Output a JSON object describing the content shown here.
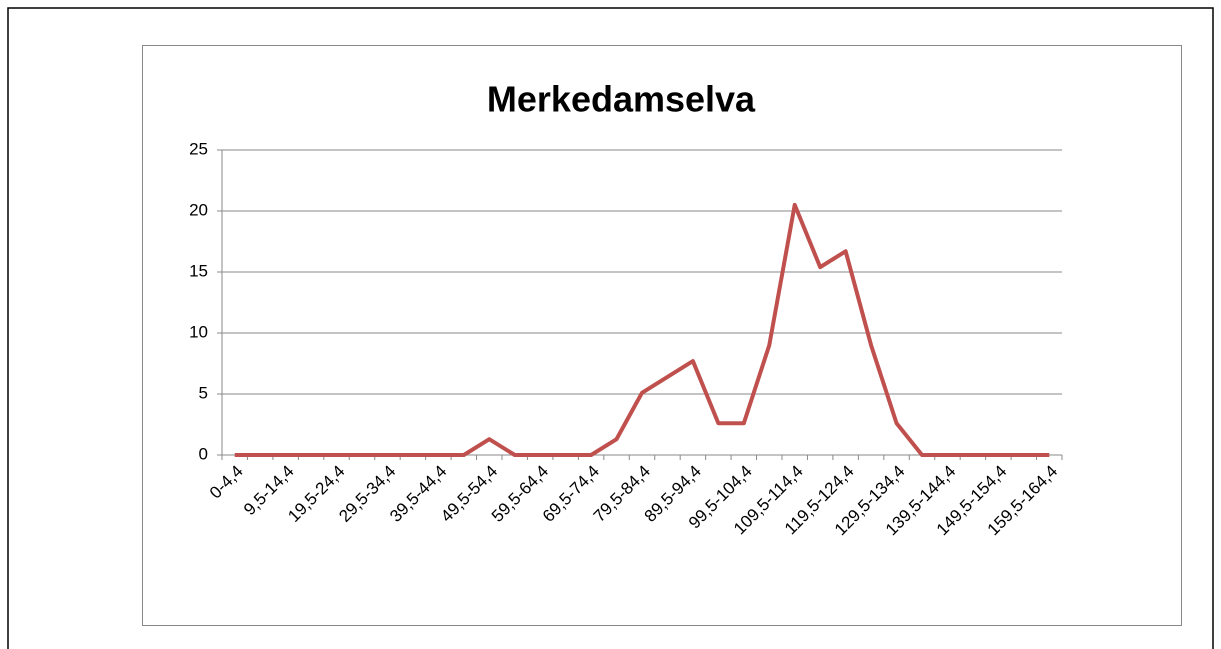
{
  "chart_data": {
    "type": "line",
    "title": "Merkedamselva",
    "categories": [
      "0-4,4",
      null,
      "9,5-14,4",
      null,
      "19,5-24,4",
      null,
      "29,5-34,4",
      null,
      "39,5-44,4",
      null,
      "49,5-54,4",
      null,
      "59,5-64,4",
      null,
      "69,5-74,4",
      null,
      "79,5-84,4",
      null,
      "89,5-94,4",
      null,
      "99,5-104,4",
      null,
      "109,5-114,4",
      null,
      "119,5-124,4",
      null,
      "129,5-134,4",
      null,
      "139,5-144,4",
      null,
      "149,5-154,4",
      null,
      "159,5-164,4"
    ],
    "series": [
      {
        "name": "Merkedamselva",
        "color": "#c0504d",
        "values": [
          0,
          0,
          0,
          0,
          0,
          0,
          0,
          0,
          0,
          0,
          1.3,
          0,
          0,
          0,
          0,
          1.3,
          5.1,
          6.4,
          7.7,
          2.6,
          2.6,
          9,
          20.5,
          15.4,
          16.7,
          9,
          2.6,
          0,
          0,
          0,
          0,
          0,
          0
        ]
      }
    ],
    "ylim": [
      0,
      25
    ],
    "yticks": [
      0,
      5,
      10,
      15,
      20,
      25
    ],
    "grid": true
  }
}
